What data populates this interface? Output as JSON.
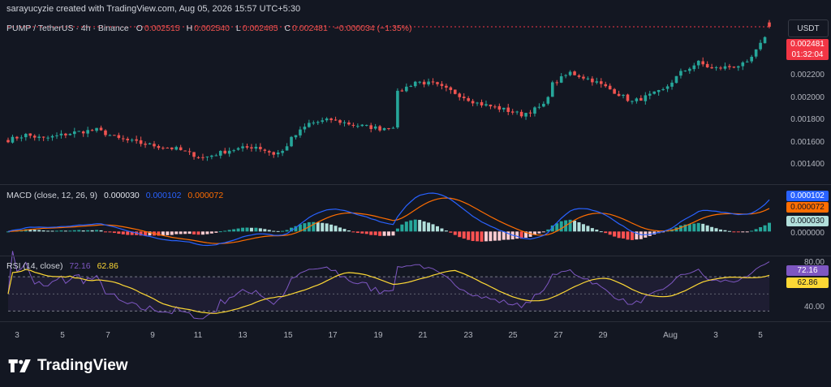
{
  "header": {
    "credit": "sarayucyzie created with TradingView.com, Aug 05, 2026 15:57 UTC+5:30",
    "currency_button": "USDT"
  },
  "price_pane": {
    "symbol": "PUMP / TetherUS · 4h · Binance",
    "o_label": "O",
    "o_value": "0.002515",
    "h_label": "H",
    "h_value": "0.002540",
    "l_label": "L",
    "l_value": "0.002465",
    "c_label": "C",
    "c_value": "0.002481",
    "change": "−0.000034 (−1.35%)",
    "last_price": "0.002481",
    "countdown": "01:32:04",
    "y_ticks": [
      "0.002200",
      "0.002000",
      "0.001800",
      "0.001600",
      "0.001400"
    ]
  },
  "macd_pane": {
    "name": "MACD (close, 12, 26, 9)",
    "hist_value": "0.000030",
    "macd_value": "0.000102",
    "signal_value": "0.000072",
    "zero_tick": "0.000000",
    "label_macd": "0.000102",
    "label_signal": "0.000072",
    "label_hist": "0.000030"
  },
  "rsi_pane": {
    "name": "RSI (14, close)",
    "rsi_value": "72.16",
    "ma_value": "62.86",
    "tick_80": "80.00",
    "tick_40": "40.00",
    "label_rsi": "72.16",
    "label_ma": "62.86"
  },
  "x_axis": [
    "3",
    "5",
    "7",
    "9",
    "11",
    "13",
    "15",
    "17",
    "19",
    "21",
    "23",
    "25",
    "27",
    "29",
    "Aug",
    "3",
    "5"
  ],
  "footer": {
    "brand": "TradingView"
  },
  "colors": {
    "background": "#131722",
    "up": "#26a69a",
    "down": "#ef5350",
    "macd": "#2962ff",
    "signal": "#ff6d00",
    "rsi": "#7e57c2",
    "rsi_ma": "#fdd835",
    "hist_up_strong": "#26a69a",
    "hist_up_weak": "#b2dfdb",
    "hist_down_strong": "#ff5252",
    "hist_down_weak": "#ffcdd2"
  },
  "chart_data": {
    "type": "candlestick",
    "timeframe": "4h",
    "y_range": [
      0.0013,
      0.0025
    ],
    "anchors": [
      [
        0,
        0.00159
      ],
      [
        4,
        0.00163
      ],
      [
        8,
        0.0016
      ],
      [
        15,
        0.00165
      ],
      [
        20,
        0.00167
      ],
      [
        25,
        0.0016
      ],
      [
        29,
        0.00157
      ],
      [
        34,
        0.00154
      ],
      [
        38,
        0.00152
      ],
      [
        44,
        0.00145
      ],
      [
        50,
        0.00151
      ],
      [
        56,
        0.00154
      ],
      [
        60,
        0.00148
      ],
      [
        62,
        0.0015
      ],
      [
        64,
        0.0016
      ],
      [
        68,
        0.00172
      ],
      [
        73,
        0.00175
      ],
      [
        78,
        0.00171
      ],
      [
        84,
        0.00168
      ],
      [
        87,
        0.0017
      ],
      [
        88,
        0.00196
      ],
      [
        92,
        0.00205
      ],
      [
        96,
        0.00203
      ],
      [
        101,
        0.00196
      ],
      [
        106,
        0.00188
      ],
      [
        112,
        0.00183
      ],
      [
        116,
        0.00179
      ],
      [
        121,
        0.00186
      ],
      [
        123,
        0.00203
      ],
      [
        127,
        0.00212
      ],
      [
        132,
        0.00206
      ],
      [
        137,
        0.00197
      ],
      [
        141,
        0.00189
      ],
      [
        148,
        0.00198
      ],
      [
        152,
        0.00212
      ],
      [
        156,
        0.0022
      ],
      [
        159,
        0.00215
      ],
      [
        164,
        0.00217
      ],
      [
        167,
        0.00219
      ],
      [
        170,
        0.00234
      ],
      [
        172,
        0.00248
      ]
    ],
    "macd_range": [
      -6e-05,
      0.00012
    ],
    "rsi_range": [
      20,
      90
    ],
    "rsi_levels": [
      70,
      50,
      30
    ]
  }
}
